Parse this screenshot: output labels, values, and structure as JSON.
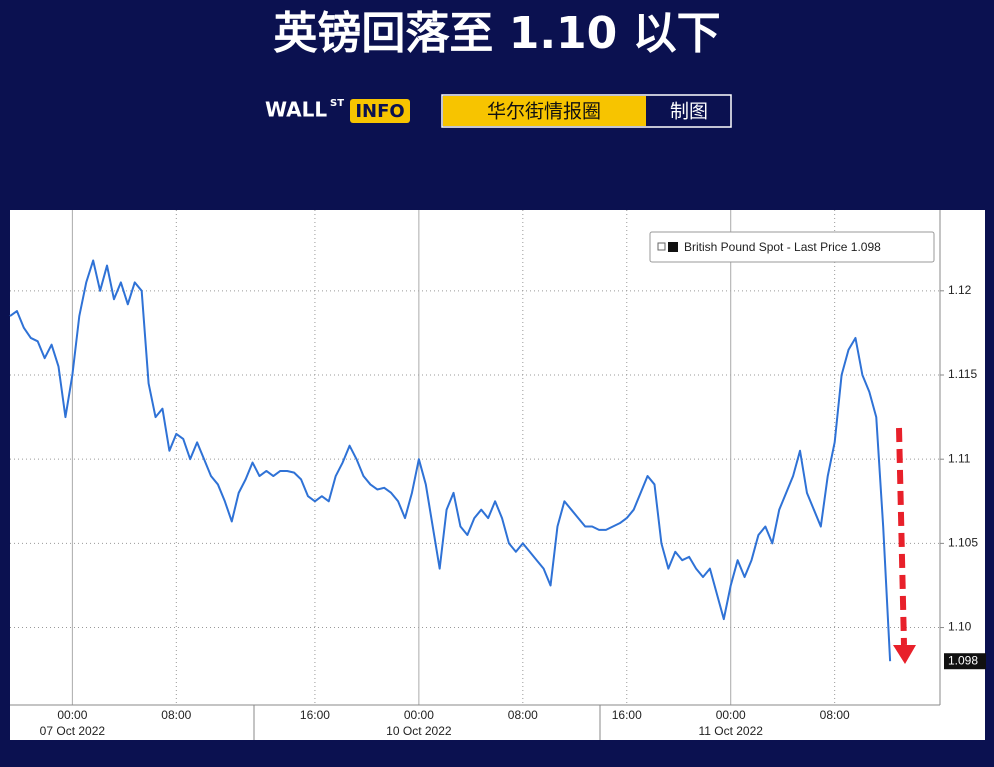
{
  "branding": {
    "logo": "WALL",
    "logo_sup": "ST",
    "logo_tag": "INFO",
    "source": "华尔街情报圈",
    "suffix": "制图"
  },
  "chart_data": {
    "type": "line",
    "title": "英镑回落至 1.10 以下",
    "categories": [
      null,
      null,
      null,
      null,
      null,
      null,
      null,
      null,
      null,
      "00:00",
      null,
      null,
      null,
      null,
      null,
      null,
      null,
      null,
      null,
      null,
      null,
      null,
      null,
      null,
      "08:00",
      null,
      null,
      null,
      null,
      null,
      null,
      null,
      null,
      null,
      null,
      null,
      null,
      null,
      null,
      null,
      null,
      null,
      null,
      null,
      "16:00",
      null,
      null,
      null,
      null,
      null,
      null,
      null,
      null,
      null,
      null,
      null,
      null,
      null,
      null,
      "00:00",
      null,
      null,
      null,
      null,
      null,
      null,
      null,
      null,
      null,
      null,
      null,
      null,
      null,
      null,
      "08:00",
      null,
      null,
      null,
      null,
      null,
      null,
      null,
      null,
      null,
      null,
      null,
      null,
      null,
      null,
      "16:00",
      null,
      null,
      null,
      null,
      null,
      null,
      null,
      null,
      null,
      null,
      null,
      null,
      null,
      null,
      "00:00",
      null,
      null,
      null,
      null,
      null,
      null,
      null,
      null,
      null,
      null,
      null,
      null,
      null,
      null,
      "08:00",
      null,
      null,
      null,
      null,
      null,
      null,
      null,
      null
    ],
    "dates": [
      null,
      null,
      null,
      null,
      null,
      null,
      null,
      null,
      null,
      "07 Oct 2022",
      null,
      null,
      null,
      null,
      null,
      null,
      null,
      null,
      null,
      null,
      null,
      null,
      null,
      null,
      null,
      null,
      null,
      null,
      null,
      null,
      null,
      null,
      null,
      null,
      null,
      null,
      null,
      null,
      null,
      null,
      null,
      null,
      null,
      null,
      null,
      null,
      null,
      null,
      null,
      null,
      null,
      null,
      null,
      null,
      null,
      null,
      null,
      null,
      null,
      "10 Oct 2022",
      null,
      null,
      null,
      null,
      null,
      null,
      null,
      null,
      null,
      null,
      null,
      null,
      null,
      null,
      null,
      null,
      null,
      null,
      null,
      null,
      null,
      null,
      null,
      null,
      null,
      null,
      null,
      null,
      null,
      null,
      null,
      null,
      null,
      null,
      null,
      null,
      null,
      null,
      null,
      null,
      null,
      null,
      null,
      null,
      "11 Oct 2022",
      null,
      null,
      null,
      null,
      null,
      null,
      null,
      null,
      null,
      null,
      null,
      null,
      null,
      null,
      null,
      null,
      null,
      null,
      null,
      null,
      null,
      null,
      null
    ],
    "series": [
      {
        "name": "British Pound Spot - Last Price",
        "color": "#2f72d6",
        "values": [
          1.1185,
          1.1188,
          1.1178,
          1.1172,
          1.117,
          1.116,
          1.1168,
          1.1155,
          1.1125,
          1.115,
          1.1185,
          1.1205,
          1.1218,
          1.12,
          1.1215,
          1.1195,
          1.1205,
          1.1192,
          1.1205,
          1.12,
          1.1145,
          1.1125,
          1.113,
          1.1105,
          1.1115,
          1.1112,
          1.11,
          1.111,
          1.11,
          1.109,
          1.1085,
          1.1075,
          1.1063,
          1.108,
          1.1088,
          1.1098,
          1.109,
          1.1093,
          1.109,
          1.1093,
          1.1093,
          1.1092,
          1.1088,
          1.1078,
          1.1075,
          1.1078,
          1.1075,
          1.109,
          1.1098,
          1.1108,
          1.11,
          1.109,
          1.1085,
          1.1082,
          1.1083,
          1.108,
          1.1075,
          1.1065,
          1.108,
          1.11,
          1.1085,
          1.106,
          1.1035,
          1.107,
          1.108,
          1.106,
          1.1055,
          1.1065,
          1.107,
          1.1065,
          1.1075,
          1.1065,
          1.105,
          1.1045,
          1.105,
          1.1045,
          1.104,
          1.1035,
          1.1025,
          1.106,
          1.1075,
          1.107,
          1.1065,
          1.106,
          1.106,
          1.1058,
          1.1058,
          1.106,
          1.1062,
          1.1065,
          1.107,
          1.108,
          1.109,
          1.1085,
          1.105,
          1.1035,
          1.1045,
          1.104,
          1.1042,
          1.1035,
          1.103,
          1.1035,
          1.102,
          1.1005,
          1.1025,
          1.104,
          1.103,
          1.104,
          1.1055,
          1.106,
          1.105,
          1.107,
          1.108,
          1.109,
          1.1105,
          1.108,
          1.107,
          1.106,
          1.109,
          1.111,
          1.115,
          1.1165,
          1.1172,
          1.115,
          1.114,
          1.1125,
          1.106,
          1.098
        ]
      }
    ],
    "last_price": 1.098,
    "ylim": [
      1.0954,
      1.1248
    ],
    "yticks": [
      {
        "value": 1.1,
        "label": "1.10"
      },
      1.105,
      1.11,
      1.115,
      1.12
    ],
    "grid": true
  }
}
